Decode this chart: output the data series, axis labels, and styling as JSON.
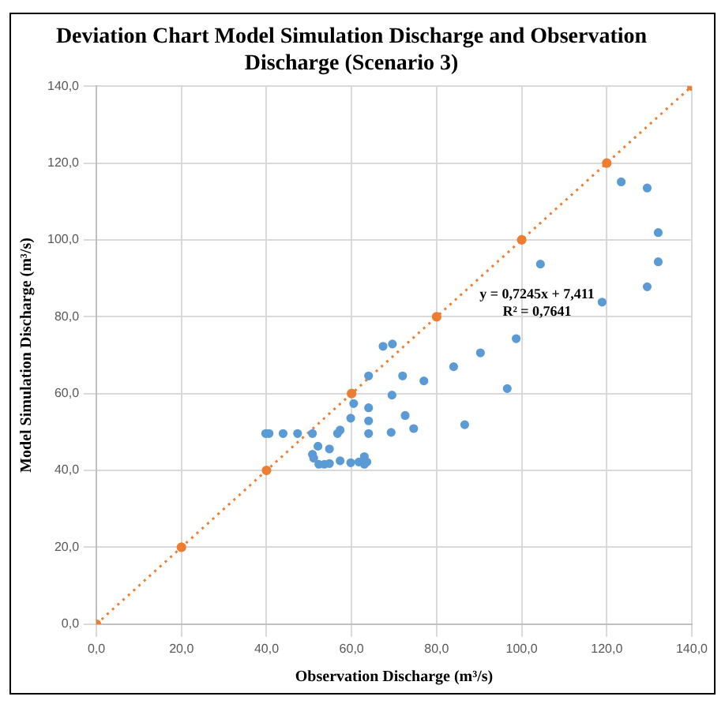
{
  "chart_data": {
    "type": "scatter",
    "title": "Deviation Chart Model Simulation Discharge and Observation Discharge (Scenario 3)",
    "xlabel": "Observation Discharge (m³/s)",
    "ylabel": "Model Simulation Discharge (m³/s)",
    "xlim": [
      0,
      140
    ],
    "ylim": [
      0,
      140
    ],
    "xticks": [
      {
        "value": 0,
        "label": "0,0"
      },
      {
        "value": 20,
        "label": "20,0"
      },
      {
        "value": 40,
        "label": "40,0"
      },
      {
        "value": 60,
        "label": "60,0"
      },
      {
        "value": 80,
        "label": "80,0"
      },
      {
        "value": 100,
        "label": "100,0"
      },
      {
        "value": 120,
        "label": "120,0"
      },
      {
        "value": 140,
        "label": "140,0"
      }
    ],
    "yticks": [
      {
        "value": 0,
        "label": "0,0"
      },
      {
        "value": 20,
        "label": "20,0"
      },
      {
        "value": 40,
        "label": "40,0"
      },
      {
        "value": 60,
        "label": "60,0"
      },
      {
        "value": 80,
        "label": "80,0"
      },
      {
        "value": 100,
        "label": "100,0"
      },
      {
        "value": 120,
        "label": "120,0"
      },
      {
        "value": 140,
        "label": "140,0"
      }
    ],
    "grid": true,
    "legend": false,
    "annotations": [
      "y = 0,7245x + 7,411",
      "R² = 0,7641"
    ],
    "series": [
      {
        "type": "scatter",
        "color": "#5b9bd5",
        "marker": "circle",
        "x": [
          39.8,
          40.6,
          43.9,
          47.3,
          50.8,
          52.1,
          50.8,
          51.1,
          52.3,
          53.6,
          54.8,
          56.7,
          57.3,
          54.8,
          57.3,
          59.8,
          61.7,
          63.0,
          63.6,
          63.0,
          59.8,
          60.5,
          64.0,
          64.0,
          64.0,
          69.3,
          69.5,
          72.6,
          74.6,
          64.0,
          67.4,
          69.6,
          72.0,
          77.0,
          84.0,
          86.6,
          90.3,
          96.6,
          98.7,
          104.4,
          123.4,
          129.5,
          132.1,
          129.5,
          132.1,
          118.9
        ],
        "values": [
          49.6,
          49.6,
          49.6,
          49.6,
          49.6,
          46.3,
          44.2,
          43.2,
          41.6,
          41.6,
          45.6,
          49.6,
          50.5,
          41.8,
          42.5,
          42.0,
          42.2,
          43.6,
          42.2,
          41.6,
          53.6,
          57.4,
          56.3,
          52.9,
          49.6,
          49.9,
          59.6,
          54.3,
          50.9,
          64.6,
          72.3,
          72.9,
          64.6,
          63.3,
          67.0,
          51.9,
          70.6,
          61.3,
          74.3,
          93.7,
          115.1,
          113.5,
          101.9,
          87.8,
          94.3,
          83.8
        ]
      },
      {
        "type": "line",
        "color": "#ed7d31",
        "marker": "circle",
        "line_style": "dotted",
        "x": [
          0,
          20,
          40,
          60,
          80,
          100,
          120,
          140
        ],
        "values": [
          0,
          20,
          40,
          60,
          80,
          100,
          120,
          140
        ]
      }
    ]
  }
}
